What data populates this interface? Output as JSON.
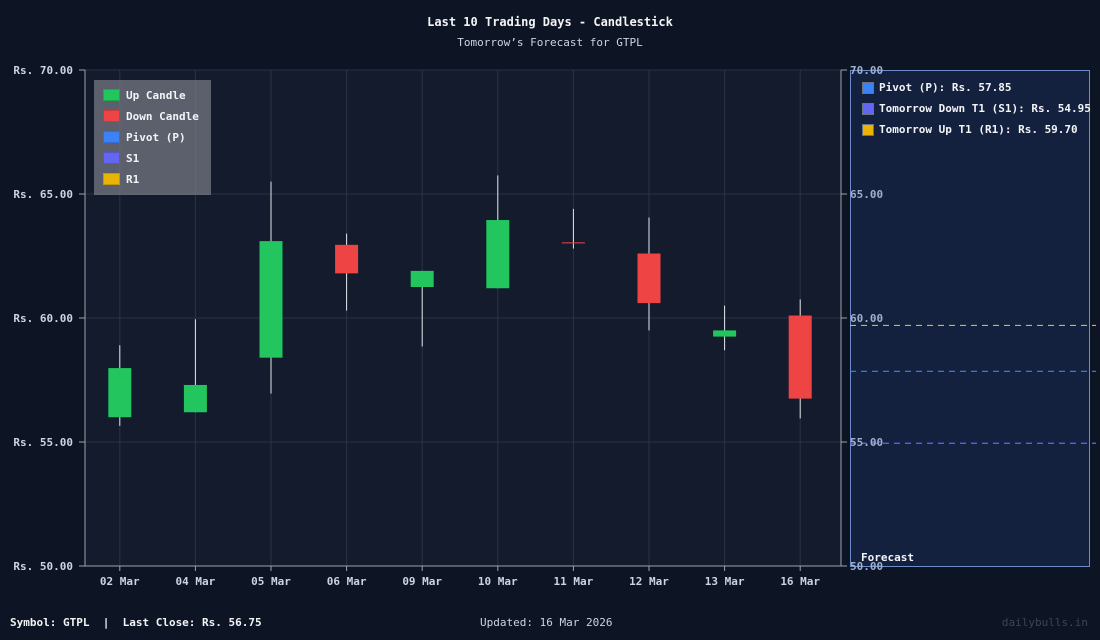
{
  "header": {
    "title": "Last 10 Trading Days - Candlestick",
    "subtitle": "Tomorrow’s Forecast for GTPL"
  },
  "legend": {
    "items": [
      {
        "label": "Up Candle",
        "color": "#22c55e"
      },
      {
        "label": "Down Candle",
        "color": "#ef4444"
      },
      {
        "label": "Pivot (P)",
        "color": "#3b82f6"
      },
      {
        "label": "S1",
        "color": "#6366f1"
      },
      {
        "label": "R1",
        "color": "#eab308"
      }
    ]
  },
  "forecast": {
    "label": "Forecast",
    "items": [
      {
        "label": "Pivot (P): Rs. 57.85",
        "color": "#3b82f6",
        "value": 57.85
      },
      {
        "label": "Tomorrow Down T1 (S1): Rs. 54.95",
        "color": "#6366f1",
        "value": 54.95
      },
      {
        "label": "Tomorrow Up T1 (R1): Rs. 59.70",
        "color": "#eab308",
        "value": 59.7
      }
    ]
  },
  "footer": {
    "symbol_text": "Symbol: GTPL  |  Last Close: Rs. 56.75",
    "updated_text": "Updated: 16 Mar 2026",
    "watermark": "dailybulls.in"
  },
  "colors": {
    "up": "#22c55e",
    "down": "#ef4444",
    "wick": "#e5e7eb",
    "plot_bg": "#131b2d",
    "grid": "#2a3344",
    "axis": "#9ca3af",
    "pivot": "#3b82f6",
    "s1": "#6366f1",
    "r1": "#eab308"
  },
  "chart_data": {
    "type": "candlestick",
    "title": "Last 10 Trading Days - Candlestick",
    "subtitle": "Tomorrow’s Forecast for GTPL",
    "xlabel": "",
    "ylabel": "",
    "ylim": [
      50,
      70
    ],
    "yticks": [
      50,
      55,
      60,
      65,
      70
    ],
    "ytick_labels": [
      "Rs. 50.00",
      "Rs. 55.00",
      "Rs. 60.00",
      "Rs. 65.00",
      "Rs. 70.00"
    ],
    "right_ytick_labels": [
      "50.00",
      "55.00",
      "60.00",
      "65.00",
      "70.00"
    ],
    "grid": true,
    "legend_position": "upper left",
    "categories": [
      "02 Mar",
      "04 Mar",
      "05 Mar",
      "06 Mar",
      "09 Mar",
      "10 Mar",
      "11 Mar",
      "12 Mar",
      "13 Mar",
      "16 Mar"
    ],
    "series": [
      {
        "name": "open",
        "values": [
          56.0,
          56.2,
          58.4,
          62.95,
          61.25,
          61.2,
          63.05,
          62.6,
          59.25,
          60.1
        ]
      },
      {
        "name": "high",
        "values": [
          58.9,
          59.95,
          65.5,
          63.4,
          61.9,
          65.75,
          64.4,
          64.05,
          60.5,
          60.75
        ]
      },
      {
        "name": "low",
        "values": [
          55.65,
          56.2,
          56.95,
          60.3,
          58.85,
          61.2,
          62.8,
          59.5,
          58.7,
          55.95
        ]
      },
      {
        "name": "close",
        "values": [
          57.98,
          57.3,
          63.1,
          61.8,
          61.9,
          63.95,
          63.05,
          60.6,
          59.5,
          56.75
        ]
      }
    ],
    "forecast_lines": [
      {
        "name": "Pivot (P)",
        "value": 57.85,
        "style": "dashed",
        "color": "#3b82f6"
      },
      {
        "name": "S1",
        "value": 54.95,
        "style": "dashed",
        "color": "#6366f1"
      },
      {
        "name": "R1",
        "value": 59.7,
        "style": "dashed",
        "color": "#eab308"
      }
    ]
  }
}
